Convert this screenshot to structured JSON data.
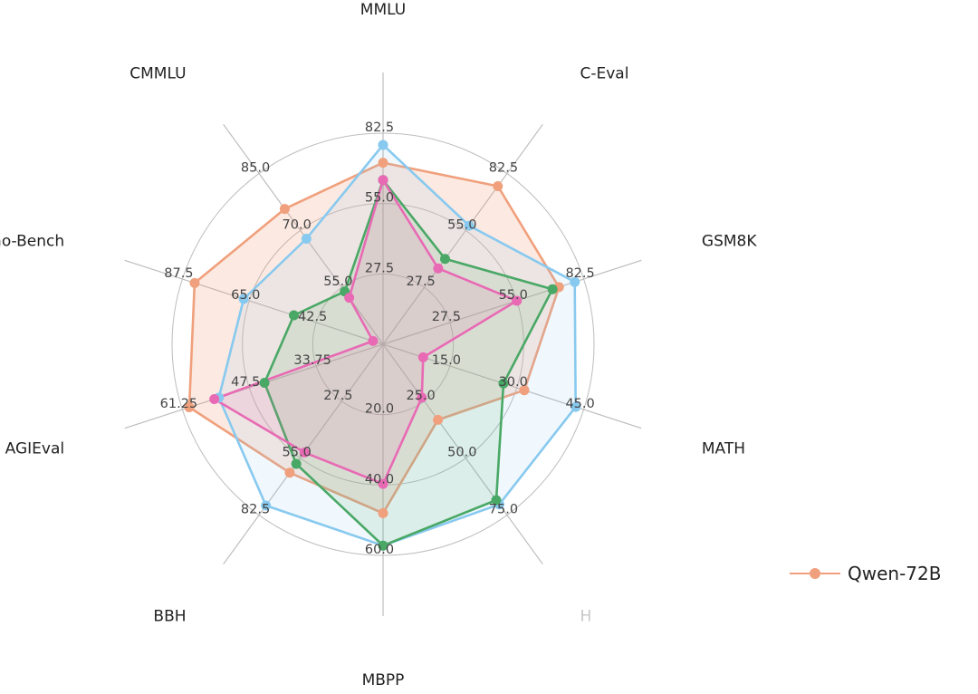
{
  "chart_data": {
    "type": "radar",
    "axes": [
      {
        "label": "MMLU",
        "ticks": [
          "27.5",
          "55.0",
          "82.5"
        ]
      },
      {
        "label": "C-Eval",
        "ticks": [
          "27.5",
          "55.0",
          "82.5"
        ]
      },
      {
        "label": "GSM8K",
        "ticks": [
          "27.5",
          "55.0",
          "82.5"
        ]
      },
      {
        "label": "MATH",
        "ticks": [
          "15.0",
          "30.0",
          "45.0"
        ]
      },
      {
        "label": "H",
        "ticks": [
          "25.0",
          "50.0",
          "75.0"
        ]
      },
      {
        "label": "MBPP",
        "ticks": [
          "20.0",
          "40.0",
          "60.0"
        ]
      },
      {
        "label": "BBH",
        "ticks": [
          "27.5",
          "55.0",
          "82.5"
        ]
      },
      {
        "label": "AGIEval",
        "ticks": [
          "33.75",
          "47.5",
          "61.25"
        ]
      },
      {
        "label": "Gaokao-Bench",
        "ticks": [
          "42.5",
          "65.0",
          "87.5"
        ]
      },
      {
        "label": "CMMLU",
        "ticks": [
          "55.0",
          "70.0",
          "85.0"
        ]
      }
    ],
    "axis_max": [
      90,
      90,
      90,
      50,
      80,
      65,
      90,
      64,
      92,
      95
    ],
    "axis_min": [
      0,
      0,
      0,
      0,
      0,
      0,
      0,
      20,
      20,
      40
    ],
    "series": [
      {
        "name": "Qwen-72B",
        "color": "#f0a07c",
        "values": [
          77.4,
          83.3,
          78.9,
          35.2,
          35.4,
          52.0,
          67.7,
          62.5,
          87.6,
          83.6
        ]
      },
      {
        "name": "",
        "color": "#88c9ef",
        "values": [
          85.0,
          62.5,
          86.0,
          48.0,
          75.0,
          62.0,
          85.0,
          56.0,
          70.0,
          74.0
        ]
      },
      {
        "name": "",
        "color": "#4aa866",
        "values": [
          70.0,
          45.0,
          76.0,
          30.0,
          73.0,
          62.0,
          63.0,
          46.0,
          52.0,
          57.0
        ]
      },
      {
        "name": "",
        "color": "#e86ab4",
        "values": [
          70.0,
          40.0,
          60.0,
          10.0,
          25.0,
          43.0,
          57.0,
          57.0,
          20.0,
          55.0
        ]
      }
    ],
    "legend_position": "bottom-right",
    "grid": true
  },
  "legend": {
    "name": "Qwen-72B"
  }
}
